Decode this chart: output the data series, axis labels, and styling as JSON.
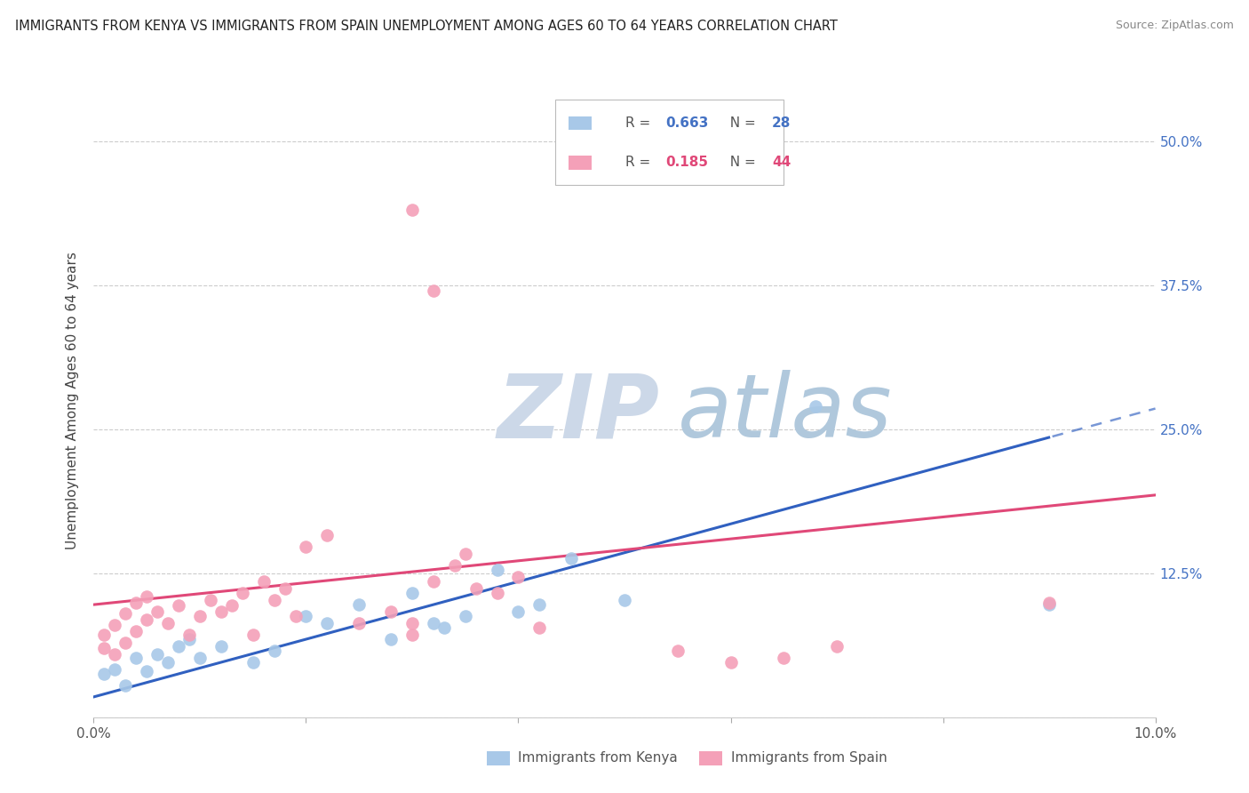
{
  "title": "IMMIGRANTS FROM KENYA VS IMMIGRANTS FROM SPAIN UNEMPLOYMENT AMONG AGES 60 TO 64 YEARS CORRELATION CHART",
  "source": "Source: ZipAtlas.com",
  "ylabel": "Unemployment Among Ages 60 to 64 years",
  "xlim": [
    0.0,
    0.1
  ],
  "ylim": [
    0.0,
    0.55
  ],
  "yticks_right": [
    0.0,
    0.125,
    0.25,
    0.375,
    0.5
  ],
  "ytick_labels_right": [
    "",
    "12.5%",
    "25.0%",
    "37.5%",
    "50.0%"
  ],
  "xticks": [
    0.0,
    0.02,
    0.04,
    0.06,
    0.08,
    0.1
  ],
  "xtick_labels": [
    "0.0%",
    "",
    "",
    "",
    "",
    "10.0%"
  ],
  "legend_label_kenya": "Immigrants from Kenya",
  "legend_label_spain": "Immigrants from Spain",
  "R_kenya": 0.663,
  "N_kenya": 28,
  "R_spain": 0.185,
  "N_spain": 44,
  "color_kenya": "#a8c8e8",
  "color_spain": "#f4a0b8",
  "line_color_kenya": "#3060c0",
  "line_color_spain": "#e04878",
  "watermark_zip_color": "#ccd8e8",
  "watermark_atlas_color": "#b0c8dc",
  "background_color": "#ffffff",
  "grid_color": "#cccccc",
  "kenya_x": [
    0.001,
    0.002,
    0.003,
    0.004,
    0.005,
    0.006,
    0.007,
    0.008,
    0.009,
    0.01,
    0.012,
    0.015,
    0.017,
    0.02,
    0.022,
    0.025,
    0.028,
    0.03,
    0.032,
    0.033,
    0.035,
    0.038,
    0.04,
    0.042,
    0.045,
    0.05,
    0.068,
    0.09
  ],
  "kenya_y": [
    0.038,
    0.042,
    0.028,
    0.052,
    0.04,
    0.055,
    0.048,
    0.062,
    0.068,
    0.052,
    0.062,
    0.048,
    0.058,
    0.088,
    0.082,
    0.098,
    0.068,
    0.108,
    0.082,
    0.078,
    0.088,
    0.128,
    0.092,
    0.098,
    0.138,
    0.102,
    0.27,
    0.098
  ],
  "spain_x": [
    0.001,
    0.001,
    0.002,
    0.002,
    0.003,
    0.003,
    0.004,
    0.004,
    0.005,
    0.005,
    0.006,
    0.007,
    0.008,
    0.009,
    0.01,
    0.011,
    0.012,
    0.013,
    0.014,
    0.015,
    0.016,
    0.017,
    0.018,
    0.019,
    0.02,
    0.022,
    0.025,
    0.028,
    0.03,
    0.03,
    0.032,
    0.034,
    0.035,
    0.036,
    0.038,
    0.04,
    0.042,
    0.055,
    0.06,
    0.065,
    0.07,
    0.09,
    0.03,
    0.032
  ],
  "spain_y": [
    0.06,
    0.072,
    0.055,
    0.08,
    0.065,
    0.09,
    0.075,
    0.1,
    0.085,
    0.105,
    0.092,
    0.082,
    0.097,
    0.072,
    0.088,
    0.102,
    0.092,
    0.097,
    0.108,
    0.072,
    0.118,
    0.102,
    0.112,
    0.088,
    0.148,
    0.158,
    0.082,
    0.092,
    0.072,
    0.082,
    0.118,
    0.132,
    0.142,
    0.112,
    0.108,
    0.122,
    0.078,
    0.058,
    0.048,
    0.052,
    0.062,
    0.1,
    0.44,
    0.37
  ]
}
